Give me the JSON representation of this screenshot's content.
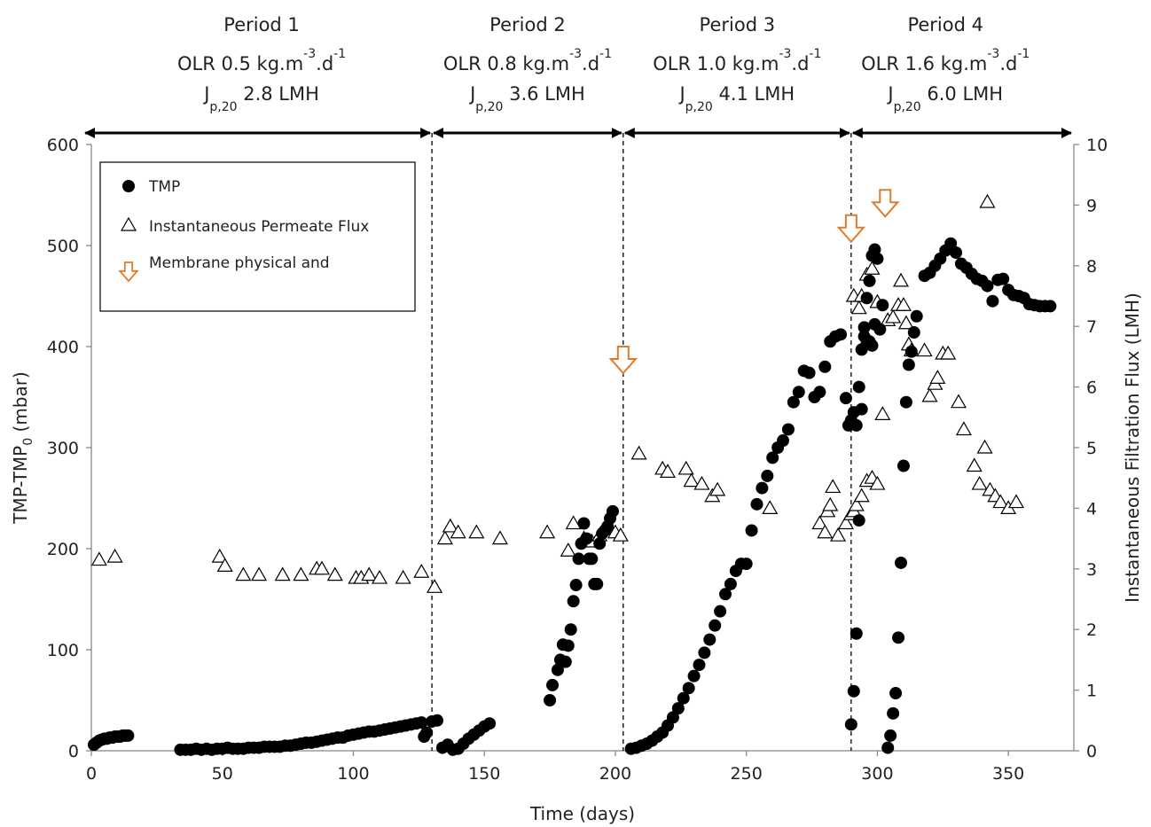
{
  "chart_data": {
    "type": "scatter",
    "xlabel": "Time (days)",
    "ylabel_main": "TMP-TMP",
    "ylabel_sub": "0",
    "ylabel_unit": " (mbar)",
    "y2label": "Instantaneous Filtration Flux (LMH)",
    "xlim": [
      0,
      375
    ],
    "ylim": [
      0,
      600
    ],
    "y2lim": [
      0,
      10
    ],
    "xticks": [
      "0",
      "50",
      "100",
      "150",
      "200",
      "250",
      "300",
      "350"
    ],
    "yticks": [
      "0",
      "100",
      "200",
      "300",
      "400",
      "500",
      "600"
    ],
    "y2ticks": [
      "0",
      "1",
      "2",
      "3",
      "4",
      "5",
      "6",
      "7",
      "8",
      "9",
      "10"
    ],
    "grid": false,
    "legend_position": "top-left",
    "legend": [
      {
        "label": "TMP",
        "marker": "filled-circle"
      },
      {
        "label": "Instantaneous Permeate Flux",
        "marker": "open-triangle"
      },
      {
        "label": "Membrane physical and",
        "marker": "orange-down-arrow"
      }
    ],
    "period_boundaries": [
      130,
      203,
      290
    ],
    "periods": [
      {
        "name": "Period 1",
        "olr": "OLR 0.5 kg.m",
        "olr_exp1": "-3",
        "olr_mid": ".d",
        "olr_exp2": "-1",
        "flux": "J",
        "flux_sub": "p,20",
        "flux_val": " 2.8 LMH",
        "x_start": 0,
        "x_end": 130
      },
      {
        "name": "Period 2",
        "olr": "OLR 0.8 kg.m",
        "olr_exp1": "-3",
        "olr_mid": ".d",
        "olr_exp2": "-1",
        "flux": "J",
        "flux_sub": "p,20",
        "flux_val": " 3.6 LMH",
        "x_start": 130,
        "x_end": 203
      },
      {
        "name": "Period 3",
        "olr": "OLR 1.0 kg.m",
        "olr_exp1": "-3",
        "olr_mid": ".d",
        "olr_exp2": "-1",
        "flux": "J",
        "flux_sub": "p,20",
        "flux_val": " 4.1 LMH",
        "x_start": 203,
        "x_end": 290
      },
      {
        "name": "Period 4",
        "olr": "OLR 1.6 kg.m",
        "olr_exp1": "-3",
        "olr_mid": ".d",
        "olr_exp2": "-1",
        "flux": "J",
        "flux_sub": "p,20",
        "flux_val": " 6.0 LMH",
        "x_start": 290,
        "x_end": 362
      }
    ],
    "cleaning_events": [
      {
        "x": 203,
        "y": 400
      },
      {
        "x": 290,
        "y": 530
      },
      {
        "x": 303,
        "y": 555
      }
    ],
    "series": [
      {
        "name": "TMP",
        "axis": "left",
        "color": "#000000",
        "points": [
          [
            1,
            6
          ],
          [
            2,
            8
          ],
          [
            3,
            10
          ],
          [
            4,
            11
          ],
          [
            5,
            12
          ],
          [
            6,
            12
          ],
          [
            7,
            13
          ],
          [
            8,
            13
          ],
          [
            9,
            14
          ],
          [
            10,
            14
          ],
          [
            11,
            14
          ],
          [
            12,
            15
          ],
          [
            13,
            15
          ],
          [
            14,
            15
          ],
          [
            34,
            1
          ],
          [
            36,
            1
          ],
          [
            38,
            1
          ],
          [
            40,
            2
          ],
          [
            42,
            1
          ],
          [
            44,
            2
          ],
          [
            46,
            1
          ],
          [
            48,
            2
          ],
          [
            50,
            2
          ],
          [
            52,
            3
          ],
          [
            54,
            2
          ],
          [
            56,
            2
          ],
          [
            58,
            2
          ],
          [
            60,
            3
          ],
          [
            62,
            3
          ],
          [
            64,
            3
          ],
          [
            66,
            4
          ],
          [
            68,
            4
          ],
          [
            70,
            4
          ],
          [
            72,
            4
          ],
          [
            74,
            5
          ],
          [
            76,
            5
          ],
          [
            78,
            6
          ],
          [
            80,
            7
          ],
          [
            82,
            8
          ],
          [
            84,
            8
          ],
          [
            86,
            9
          ],
          [
            88,
            10
          ],
          [
            90,
            11
          ],
          [
            92,
            12
          ],
          [
            94,
            13
          ],
          [
            96,
            13
          ],
          [
            98,
            15
          ],
          [
            100,
            16
          ],
          [
            102,
            17
          ],
          [
            104,
            18
          ],
          [
            106,
            19
          ],
          [
            108,
            19
          ],
          [
            110,
            20
          ],
          [
            112,
            21
          ],
          [
            114,
            22
          ],
          [
            116,
            23
          ],
          [
            118,
            24
          ],
          [
            120,
            25
          ],
          [
            122,
            26
          ],
          [
            124,
            27
          ],
          [
            126,
            28
          ],
          [
            127,
            14
          ],
          [
            128,
            18
          ],
          [
            130,
            29
          ],
          [
            132,
            30
          ],
          [
            134,
            3
          ],
          [
            136,
            6
          ],
          [
            138,
            1
          ],
          [
            140,
            2
          ],
          [
            142,
            7
          ],
          [
            144,
            12
          ],
          [
            146,
            16
          ],
          [
            148,
            20
          ],
          [
            150,
            24
          ],
          [
            152,
            27
          ],
          [
            175,
            50
          ],
          [
            176,
            65
          ],
          [
            178,
            80
          ],
          [
            179,
            90
          ],
          [
            180,
            105
          ],
          [
            181,
            88
          ],
          [
            182,
            104
          ],
          [
            183,
            120
          ],
          [
            184,
            148
          ],
          [
            185,
            164
          ],
          [
            186,
            190
          ],
          [
            187,
            205
          ],
          [
            188,
            225
          ],
          [
            189,
            210
          ],
          [
            190,
            190
          ],
          [
            191,
            190
          ],
          [
            192,
            165
          ],
          [
            193,
            165
          ],
          [
            194,
            205
          ],
          [
            195,
            215
          ],
          [
            196,
            218
          ],
          [
            197,
            222
          ],
          [
            198,
            230
          ],
          [
            199,
            237
          ],
          [
            206,
            2
          ],
          [
            208,
            3
          ],
          [
            210,
            5
          ],
          [
            212,
            7
          ],
          [
            214,
            10
          ],
          [
            216,
            14
          ],
          [
            218,
            18
          ],
          [
            220,
            25
          ],
          [
            222,
            33
          ],
          [
            224,
            42
          ],
          [
            226,
            52
          ],
          [
            228,
            62
          ],
          [
            230,
            74
          ],
          [
            232,
            85
          ],
          [
            234,
            97
          ],
          [
            236,
            110
          ],
          [
            238,
            124
          ],
          [
            240,
            138
          ],
          [
            242,
            155
          ],
          [
            244,
            165
          ],
          [
            246,
            178
          ],
          [
            248,
            185
          ],
          [
            250,
            185
          ],
          [
            252,
            218
          ],
          [
            254,
            244
          ],
          [
            256,
            260
          ],
          [
            258,
            272
          ],
          [
            260,
            290
          ],
          [
            262,
            300
          ],
          [
            264,
            307
          ],
          [
            266,
            318
          ],
          [
            268,
            345
          ],
          [
            270,
            355
          ],
          [
            272,
            376
          ],
          [
            274,
            374
          ],
          [
            276,
            350
          ],
          [
            278,
            355
          ],
          [
            280,
            380
          ],
          [
            282,
            405
          ],
          [
            284,
            410
          ],
          [
            286,
            412
          ],
          [
            288,
            349
          ],
          [
            289,
            322
          ],
          [
            290,
            327
          ],
          [
            291,
            335
          ],
          [
            292,
            322
          ],
          [
            293,
            360
          ],
          [
            294,
            397
          ],
          [
            295,
            410
          ],
          [
            296,
            403
          ],
          [
            297,
            405
          ],
          [
            298,
            401
          ],
          [
            299,
            422
          ],
          [
            290,
            26
          ],
          [
            291,
            59
          ],
          [
            292,
            116
          ],
          [
            293,
            228
          ],
          [
            294,
            338
          ],
          [
            295,
            419
          ],
          [
            296,
            448
          ],
          [
            297,
            465
          ],
          [
            298,
            490
          ],
          [
            299,
            496
          ],
          [
            300,
            487
          ],
          [
            301,
            417
          ],
          [
            302,
            441
          ],
          [
            304,
            3
          ],
          [
            305,
            15
          ],
          [
            306,
            37
          ],
          [
            307,
            57
          ],
          [
            308,
            112
          ],
          [
            309,
            186
          ],
          [
            310,
            282
          ],
          [
            311,
            345
          ],
          [
            312,
            382
          ],
          [
            313,
            395
          ],
          [
            314,
            414
          ],
          [
            315,
            430
          ],
          [
            318,
            470
          ],
          [
            320,
            473
          ],
          [
            322,
            480
          ],
          [
            324,
            487
          ],
          [
            326,
            495
          ],
          [
            328,
            502
          ],
          [
            330,
            493
          ],
          [
            332,
            482
          ],
          [
            334,
            478
          ],
          [
            336,
            472
          ],
          [
            338,
            467
          ],
          [
            340,
            465
          ],
          [
            342,
            460
          ],
          [
            344,
            445
          ],
          [
            346,
            466
          ],
          [
            348,
            467
          ],
          [
            350,
            456
          ],
          [
            352,
            451
          ],
          [
            354,
            450
          ],
          [
            356,
            448
          ],
          [
            358,
            442
          ],
          [
            360,
            441
          ],
          [
            362,
            440
          ],
          [
            364,
            440
          ],
          [
            366,
            440
          ]
        ]
      },
      {
        "name": "Instantaneous Permeate Flux",
        "axis": "right",
        "color": "#000000",
        "points": [
          [
            3,
            3.15
          ],
          [
            9,
            3.2
          ],
          [
            49,
            3.2
          ],
          [
            51,
            3.05
          ],
          [
            58,
            2.9
          ],
          [
            64,
            2.9
          ],
          [
            73,
            2.9
          ],
          [
            80,
            2.9
          ],
          [
            86,
            3.0
          ],
          [
            88,
            3.0
          ],
          [
            93,
            2.9
          ],
          [
            101,
            2.85
          ],
          [
            103,
            2.85
          ],
          [
            106,
            2.9
          ],
          [
            110,
            2.85
          ],
          [
            119,
            2.85
          ],
          [
            126,
            2.95
          ],
          [
            131,
            2.7
          ],
          [
            135,
            3.5
          ],
          [
            137,
            3.7
          ],
          [
            140,
            3.6
          ],
          [
            147,
            3.6
          ],
          [
            156,
            3.5
          ],
          [
            174,
            3.6
          ],
          [
            182,
            3.3
          ],
          [
            184,
            3.75
          ],
          [
            188,
            3.5
          ],
          [
            191,
            3.45
          ],
          [
            194,
            3.55
          ],
          [
            197,
            3.65
          ],
          [
            200,
            3.6
          ],
          [
            202,
            3.55
          ],
          [
            209,
            4.9
          ],
          [
            218,
            4.65
          ],
          [
            220,
            4.6
          ],
          [
            227,
            4.65
          ],
          [
            229,
            4.45
          ],
          [
            233,
            4.4
          ],
          [
            237,
            4.2
          ],
          [
            239,
            4.3
          ],
          [
            259,
            4.0
          ],
          [
            278,
            3.75
          ],
          [
            280,
            3.6
          ],
          [
            281,
            3.95
          ],
          [
            282,
            4.05
          ],
          [
            283,
            4.35
          ],
          [
            285,
            3.55
          ],
          [
            288,
            3.75
          ],
          [
            290,
            3.9
          ],
          [
            291,
            3.95
          ],
          [
            292,
            4.05
          ],
          [
            294,
            4.2
          ],
          [
            296,
            4.45
          ],
          [
            298,
            4.5
          ],
          [
            300,
            4.4
          ],
          [
            291,
            7.5
          ],
          [
            293,
            7.3
          ],
          [
            294,
            7.5
          ],
          [
            296,
            7.85
          ],
          [
            298,
            7.95
          ],
          [
            300,
            7.4
          ],
          [
            302,
            5.55
          ],
          [
            304,
            7.1
          ],
          [
            306,
            7.15
          ],
          [
            308,
            7.35
          ],
          [
            309,
            7.75
          ],
          [
            310,
            7.35
          ],
          [
            311,
            7.05
          ],
          [
            312,
            6.7
          ],
          [
            313,
            6.6
          ],
          [
            318,
            6.6
          ],
          [
            320,
            5.85
          ],
          [
            322,
            6.05
          ],
          [
            323,
            6.15
          ],
          [
            325,
            6.55
          ],
          [
            327,
            6.55
          ],
          [
            331,
            5.75
          ],
          [
            333,
            5.3
          ],
          [
            337,
            4.7
          ],
          [
            339,
            4.4
          ],
          [
            341,
            5.0
          ],
          [
            343,
            4.3
          ],
          [
            345,
            4.2
          ],
          [
            347,
            4.1
          ],
          [
            350,
            4.0
          ],
          [
            353,
            4.1
          ],
          [
            342,
            9.05
          ]
        ]
      }
    ]
  }
}
